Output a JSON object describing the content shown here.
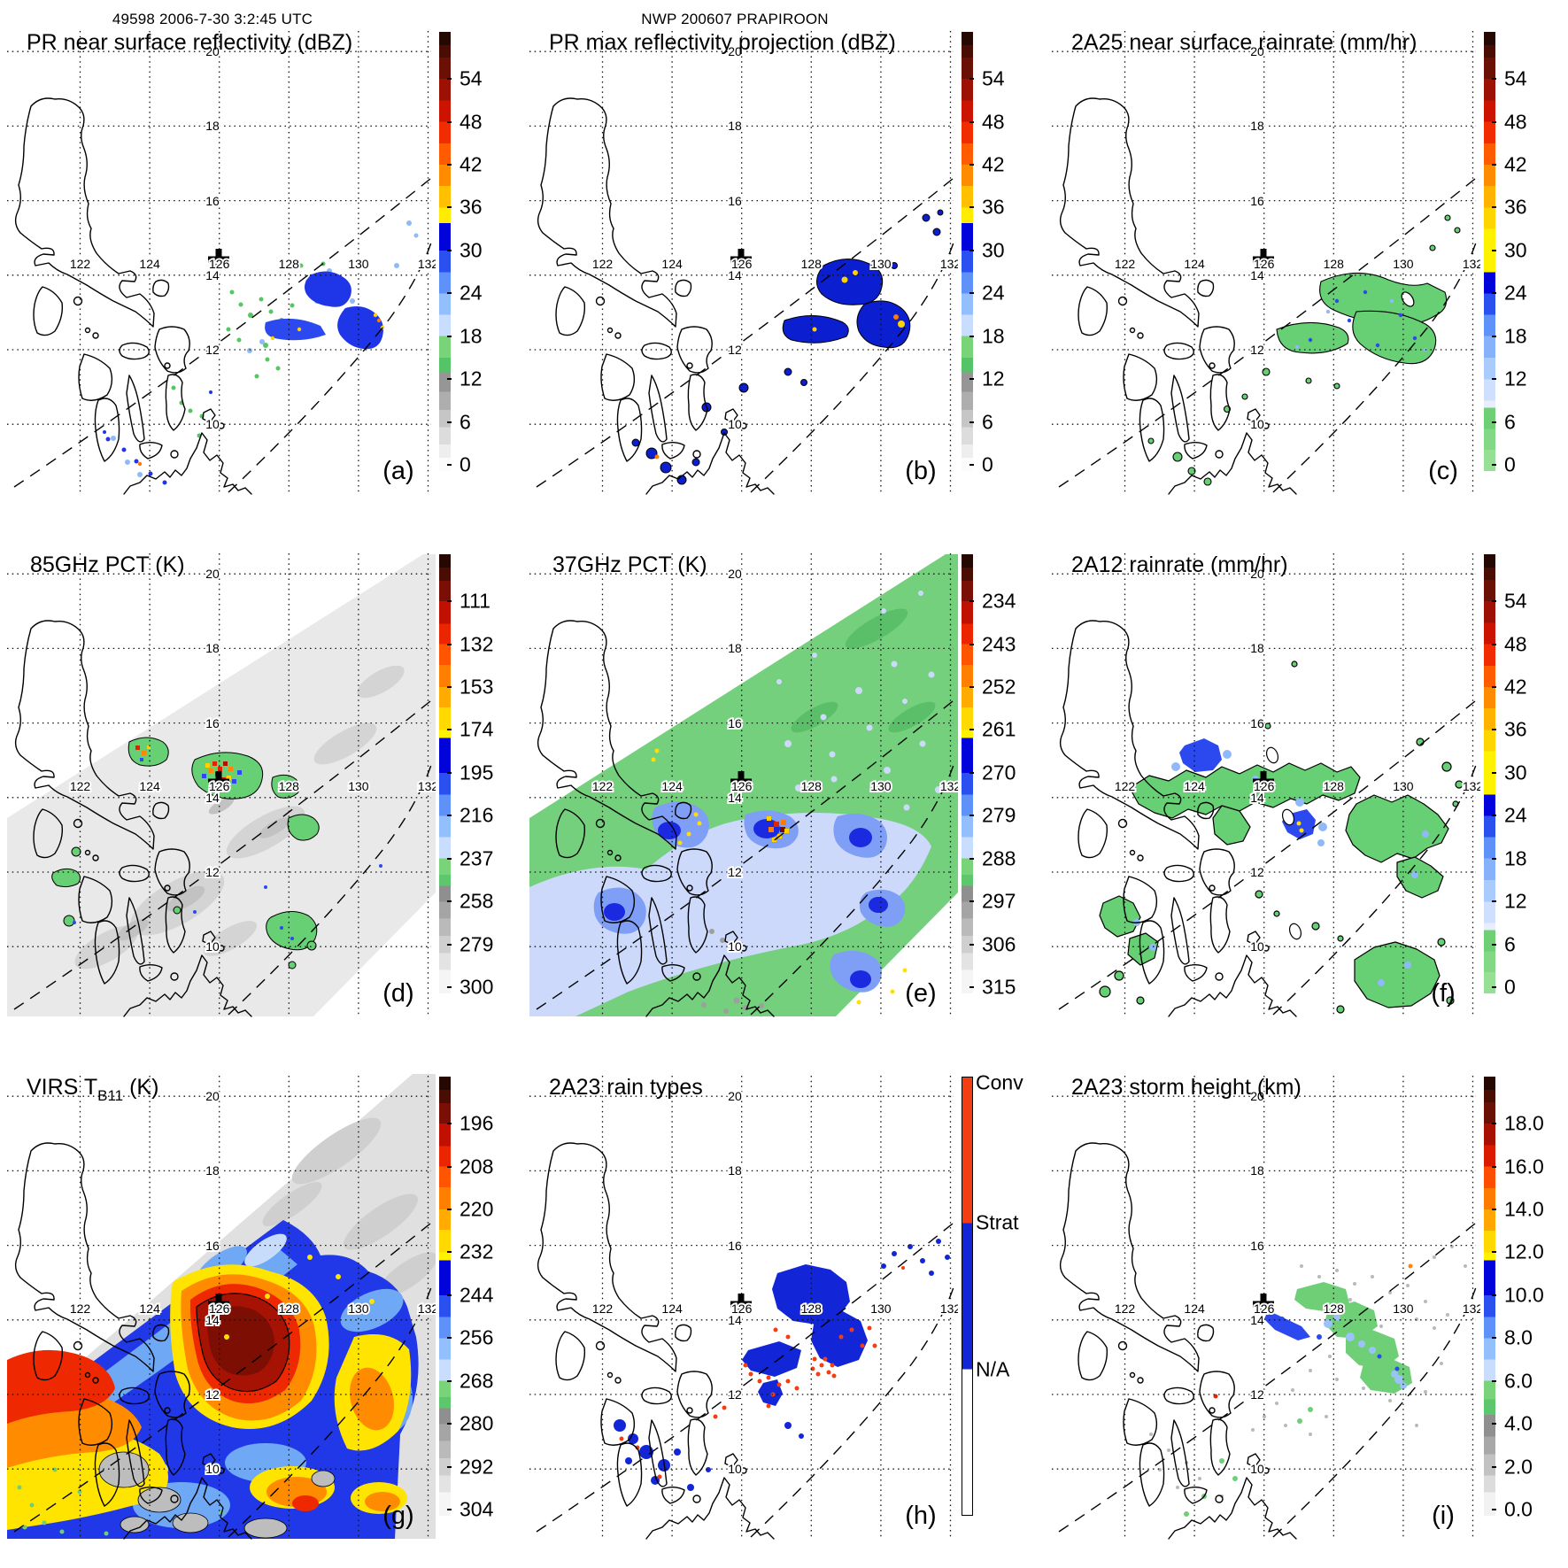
{
  "header": {
    "left": "49598 2006-7-30 3:2:45 UTC",
    "center": "NWP 200607 PRAPIROON"
  },
  "grid": {
    "lon_labels": [
      "122",
      "124",
      "126",
      "128",
      "130",
      "132"
    ],
    "lat_labels": [
      "20",
      "18",
      "16",
      "14",
      "12",
      "10"
    ]
  },
  "marker": {
    "symbol": "storm-center-cross",
    "lon": 126.0,
    "lat": 14.4
  },
  "panels": [
    {
      "letter": "(a)",
      "title": "PR near surface reflectivity (dBZ)",
      "scale": "dbz"
    },
    {
      "letter": "(b)",
      "title": "PR max reflectivity projection (dBZ)",
      "scale": "dbz"
    },
    {
      "letter": "(c)",
      "title": "2A25 near surface rainrate (mm/hr)",
      "scale": "rainrate"
    },
    {
      "letter": "(d)",
      "title": "85GHz PCT (K)",
      "scale": "pct85"
    },
    {
      "letter": "(e)",
      "title": "37GHz PCT (K)",
      "scale": "pct37"
    },
    {
      "letter": "(f)",
      "title": "2A12 rainrate (mm/hr)",
      "scale": "rainrate"
    },
    {
      "letter": "(g)",
      "title": "VIRS T",
      "title_sub": "B11",
      "title_suffix": " (K)",
      "scale": "virs"
    },
    {
      "letter": "(h)",
      "title": "2A23 rain types",
      "scale": "raintype"
    },
    {
      "letter": "(i)",
      "title": "2A23 storm height (km)",
      "scale": "height"
    }
  ],
  "colorbar_scales": {
    "dbz": {
      "ticks": [
        "54",
        "48",
        "42",
        "36",
        "30",
        "24",
        "18",
        "12",
        "6",
        "0"
      ],
      "stops": [
        [
          "#240801",
          0,
          3
        ],
        [
          "#4a0d03",
          3,
          5.8
        ],
        [
          "#6b1005",
          5.8,
          10.7
        ],
        [
          "#9c1103",
          10.7,
          15.6
        ],
        [
          "#cb1300",
          15.6,
          20.5
        ],
        [
          "#f12c00",
          20.5,
          25.4
        ],
        [
          "#ff5b00",
          25.4,
          30.2
        ],
        [
          "#ff8c00",
          30.2,
          35.1
        ],
        [
          "#ffc000",
          35.1,
          40
        ],
        [
          "#ffec00",
          40,
          43.5
        ],
        [
          "#0004da",
          43.5,
          49.8
        ],
        [
          "#2a50f0",
          49.8,
          54.7
        ],
        [
          "#5e92f8",
          54.7,
          59.6
        ],
        [
          "#93c0fc",
          59.6,
          64.4
        ],
        [
          "#c9defe",
          64.4,
          69.3
        ],
        [
          "#79d379",
          69.3,
          74.2
        ],
        [
          "#55c468",
          74.2,
          77.5
        ],
        [
          "#969696",
          77.5,
          82
        ],
        [
          "#aeaeae",
          82,
          86.1
        ],
        [
          "#c6c6c6",
          86.1,
          90
        ],
        [
          "#dcdcdc",
          90,
          94
        ],
        [
          "#eeeeee",
          94,
          97
        ],
        [
          "#fbfbfb",
          97,
          100
        ]
      ]
    },
    "rainrate": {
      "ticks": [
        "54",
        "48",
        "42",
        "36",
        "30",
        "24",
        "18",
        "12",
        "6",
        "0"
      ],
      "stops": [
        [
          "#240801",
          0,
          3
        ],
        [
          "#4a0d03",
          3,
          5.8
        ],
        [
          "#6b1005",
          5.8,
          10.7
        ],
        [
          "#9c1103",
          10.7,
          15.6
        ],
        [
          "#cb1300",
          15.6,
          20.5
        ],
        [
          "#f12c00",
          20.5,
          25.4
        ],
        [
          "#ff5b00",
          25.4,
          30.2
        ],
        [
          "#ff8c00",
          30.2,
          35.1
        ],
        [
          "#ffb300",
          35.1,
          40
        ],
        [
          "#ffd500",
          40,
          44.9
        ],
        [
          "#fff200",
          44.9,
          54.7
        ],
        [
          "#0004da",
          54.7,
          59.6
        ],
        [
          "#2a50f0",
          59.6,
          64.4
        ],
        [
          "#5e92f8",
          64.4,
          69.3
        ],
        [
          "#85b2fa",
          69.3,
          74.2
        ],
        [
          "#a9ccfc",
          74.2,
          79.1
        ],
        [
          "#cfe0fe",
          79.1,
          84
        ],
        [
          "#e8eefe",
          84,
          85.6
        ],
        [
          "#6fcf75",
          85.6,
          90.4
        ],
        [
          "#82d884",
          90.4,
          95.2
        ],
        [
          "#95e095",
          95.2,
          100
        ]
      ]
    },
    "pct85": {
      "ticks": [
        "111",
        "132",
        "153",
        "174",
        "195",
        "216",
        "237",
        "258",
        "279",
        "300"
      ],
      "stops": [
        [
          "#240801",
          0,
          3
        ],
        [
          "#4a0d03",
          3,
          6
        ],
        [
          "#7a1005",
          6,
          10.7
        ],
        [
          "#c01002",
          10.7,
          15.8
        ],
        [
          "#ea2500",
          15.8,
          20.5
        ],
        [
          "#ff5500",
          20.5,
          25.2
        ],
        [
          "#ff8000",
          25.2,
          30.2
        ],
        [
          "#ffab00",
          30.2,
          34.9
        ],
        [
          "#ffd900",
          34.9,
          40
        ],
        [
          "#fff200",
          40,
          41.8
        ],
        [
          "#0004da",
          41.8,
          49.8
        ],
        [
          "#2a50f0",
          49.8,
          54.7
        ],
        [
          "#5e92f8",
          54.7,
          59.6
        ],
        [
          "#93c0fc",
          59.6,
          64.4
        ],
        [
          "#c9defe",
          64.4,
          69.3
        ],
        [
          "#79d379",
          69.3,
          73
        ],
        [
          "#5cc76c",
          73,
          75.5
        ],
        [
          "#8f8f8f",
          75.5,
          79.1
        ],
        [
          "#a5a5a5",
          79.1,
          83
        ],
        [
          "#bababa",
          83,
          86.9
        ],
        [
          "#cfcfcf",
          86.9,
          90.8
        ],
        [
          "#e3e3e3",
          90.8,
          94.7
        ],
        [
          "#f5f5f5",
          94.7,
          100
        ]
      ]
    },
    "pct37": {
      "ticks": [
        "234",
        "243",
        "252",
        "261",
        "270",
        "279",
        "288",
        "297",
        "306",
        "315"
      ],
      "stops": [
        [
          "#240801",
          0,
          3
        ],
        [
          "#4a0d03",
          3,
          6
        ],
        [
          "#7a1005",
          6,
          10.7
        ],
        [
          "#c01002",
          10.7,
          15.8
        ],
        [
          "#ea2500",
          15.8,
          20.5
        ],
        [
          "#ff5500",
          20.5,
          25.2
        ],
        [
          "#ff8000",
          25.2,
          30.2
        ],
        [
          "#ffab00",
          30.2,
          34.9
        ],
        [
          "#ffd900",
          34.9,
          40
        ],
        [
          "#fff200",
          40,
          41.8
        ],
        [
          "#0004da",
          41.8,
          49.8
        ],
        [
          "#2a50f0",
          49.8,
          54.7
        ],
        [
          "#5e92f8",
          54.7,
          59.6
        ],
        [
          "#93c0fc",
          59.6,
          64.4
        ],
        [
          "#c9defe",
          64.4,
          69.3
        ],
        [
          "#79d379",
          69.3,
          73
        ],
        [
          "#5cc76c",
          73,
          75.5
        ],
        [
          "#8f8f8f",
          75.5,
          79.1
        ],
        [
          "#a5a5a5",
          79.1,
          83
        ],
        [
          "#bababa",
          83,
          86.9
        ],
        [
          "#cfcfcf",
          86.9,
          90.8
        ],
        [
          "#e3e3e3",
          90.8,
          94.7
        ],
        [
          "#f5f5f5",
          94.7,
          100
        ]
      ]
    },
    "virs": {
      "ticks": [
        "196",
        "208",
        "220",
        "232",
        "244",
        "256",
        "268",
        "280",
        "292",
        "304"
      ],
      "stops": [
        [
          "#240801",
          0,
          3
        ],
        [
          "#4a0d03",
          3,
          6
        ],
        [
          "#7a1005",
          6,
          10.7
        ],
        [
          "#c01002",
          10.7,
          15.8
        ],
        [
          "#ea2500",
          15.8,
          20.5
        ],
        [
          "#ff5500",
          20.5,
          25.2
        ],
        [
          "#ff8000",
          25.2,
          30.2
        ],
        [
          "#ffab00",
          30.2,
          34.9
        ],
        [
          "#ffd900",
          34.9,
          40
        ],
        [
          "#fff200",
          40,
          41.8
        ],
        [
          "#0004da",
          41.8,
          49.8
        ],
        [
          "#2a50f0",
          49.8,
          54.7
        ],
        [
          "#5e92f8",
          54.7,
          59.6
        ],
        [
          "#93c0fc",
          59.6,
          64.4
        ],
        [
          "#c9defe",
          64.4,
          69.3
        ],
        [
          "#79d379",
          69.3,
          73
        ],
        [
          "#5cc76c",
          73,
          75.5
        ],
        [
          "#8f8f8f",
          75.5,
          79.1
        ],
        [
          "#a5a5a5",
          79.1,
          83
        ],
        [
          "#bababa",
          83,
          86.9
        ],
        [
          "#cfcfcf",
          86.9,
          90.8
        ],
        [
          "#e3e3e3",
          90.8,
          94.7
        ],
        [
          "#f5f5f5",
          94.7,
          100
        ]
      ]
    },
    "height": {
      "ticks": [
        "18.0",
        "16.0",
        "14.0",
        "12.0",
        "10.0",
        "8.0",
        "6.0",
        "4.0",
        "2.0",
        "0.0"
      ],
      "stops": [
        [
          "#240801",
          0,
          3
        ],
        [
          "#4a0d03",
          3,
          5.8
        ],
        [
          "#6b1005",
          5.8,
          10.7
        ],
        [
          "#a81102",
          10.7,
          15.6
        ],
        [
          "#da1b00",
          15.6,
          20.5
        ],
        [
          "#ff4d00",
          20.5,
          25.4
        ],
        [
          "#ff7b00",
          25.4,
          30.2
        ],
        [
          "#ffa700",
          30.2,
          35.1
        ],
        [
          "#ffd900",
          35.1,
          40
        ],
        [
          "#fff200",
          40,
          41.8
        ],
        [
          "#0004da",
          41.8,
          49.8
        ],
        [
          "#2a50f0",
          49.8,
          54.7
        ],
        [
          "#5e92f8",
          54.7,
          59.6
        ],
        [
          "#93c0fc",
          59.6,
          64.4
        ],
        [
          "#c9defe",
          64.4,
          69.3
        ],
        [
          "#79d379",
          69.3,
          73.5
        ],
        [
          "#5cc76c",
          73.5,
          77
        ],
        [
          "#909090",
          77,
          82
        ],
        [
          "#a8a8a8",
          82,
          86
        ],
        [
          "#c2c2c2",
          86,
          90.8
        ],
        [
          "#dcdcdc",
          90.8,
          94.7
        ],
        [
          "#f2f2f2",
          94.7,
          100
        ]
      ]
    },
    "raintype": {
      "ticks": [
        "Conv",
        "Strat",
        "N/A"
      ],
      "tick_pcts": [
        1.5,
        33.3,
        66.7
      ],
      "no_marks": true,
      "stops": [
        [
          "#f43d10",
          0,
          33.3
        ],
        [
          "#1226d8",
          33.3,
          66.7
        ],
        [
          "#ffffff",
          66.7,
          100
        ]
      ]
    }
  },
  "chart_data": {
    "type": "heatmap",
    "title": "TRMM overpass 49598, 2006-7-30 3:2:45 UTC, NWP 200607 PRAPIROON",
    "layout": "3x3 lat-lon map panels, each with discrete rainbow colorbar on right",
    "map_extent": {
      "lon_range": [
        120.0,
        132.5
      ],
      "lat_range": [
        8.7,
        20.5
      ]
    },
    "grid_lons": [
      122,
      124,
      126,
      128,
      130,
      132
    ],
    "grid_lats": [
      20,
      18,
      16,
      14,
      12,
      10
    ],
    "storm_center_marker": {
      "lon": 126.0,
      "lat": 14.4
    },
    "swath_edges": "dashed diagonal SW-NE lines marking PR swath; TMI/VIRS swaths shown by data extent",
    "panels": [
      {
        "letter": "(a)",
        "title": "PR near surface reflectivity (dBZ)",
        "colorbar_ticks": [
          54,
          48,
          42,
          36,
          30,
          24,
          18,
          12,
          6,
          0
        ],
        "data_note": "scattered 15-35 dBZ echoes inside PR swath, lon 127-132, lat 9-15"
      },
      {
        "letter": "(b)",
        "title": "PR max reflectivity projection (dBZ)",
        "colorbar_ticks": [
          54,
          48,
          42,
          36,
          30,
          24,
          18,
          12,
          6,
          0
        ],
        "data_note": "solid blue 30-35 dBZ blobs with black outlines and yellow-orange cores"
      },
      {
        "letter": "(c)",
        "title": "2A25 near surface rainrate (mm/hr)",
        "colorbar_ticks": [
          54,
          48,
          42,
          36,
          30,
          24,
          18,
          12,
          6,
          0
        ],
        "data_note": "green 0-6 mm/hr outlined rain areas with embedded blue specks"
      },
      {
        "letter": "(d)",
        "title": "85GHz PCT (K)",
        "colorbar_ticks": [
          111,
          132,
          153,
          174,
          195,
          216,
          237,
          258,
          279,
          300
        ],
        "data_note": "pale gray TMI swath, green ~237K patches, red-orange <150K convective cores near 126.5E 14.3N"
      },
      {
        "letter": "(e)",
        "title": "37GHz PCT (K)",
        "colorbar_ticks": [
          234,
          243,
          252,
          261,
          270,
          279,
          288,
          297,
          306,
          315
        ],
        "data_note": "green ~290K background, blue 270-280K rain region, yellow-red <261K core near 126.8E 14.1N"
      },
      {
        "letter": "(f)",
        "title": "2A12 rainrate (mm/hr)",
        "colorbar_ticks": [
          54,
          48,
          42,
          36,
          30,
          24,
          18,
          12,
          6,
          0
        ],
        "data_note": "green 0-6 mm/hr outlined areas with blue 12-24 patches and tiny yellow ~30 spot"
      },
      {
        "letter": "(g)",
        "title": "VIRS TB11 (K)",
        "colorbar_ticks": [
          196,
          208,
          220,
          232,
          244,
          256,
          268,
          280,
          292,
          304
        ],
        "data_note": "large cold cloud shield: dark-red <208K core, red/orange/yellow bands, blue 232-256K, gray warm NE sector"
      },
      {
        "letter": "(h)",
        "title": "2A23 rain types",
        "colorbar_ticks": [
          "Conv",
          "Strat",
          "N/A"
        ],
        "data_note": "blue stratiform clusters with scattered orange convective pixels inside PR swath"
      },
      {
        "letter": "(i)",
        "title": "2A23 storm height (km)",
        "colorbar_ticks": [
          18,
          16,
          14,
          12,
          10,
          8,
          6,
          4,
          2,
          0
        ],
        "data_note": "gray 2-4 km and green ~6 km echo tops, blue 8-10 km streaks"
      }
    ]
  }
}
